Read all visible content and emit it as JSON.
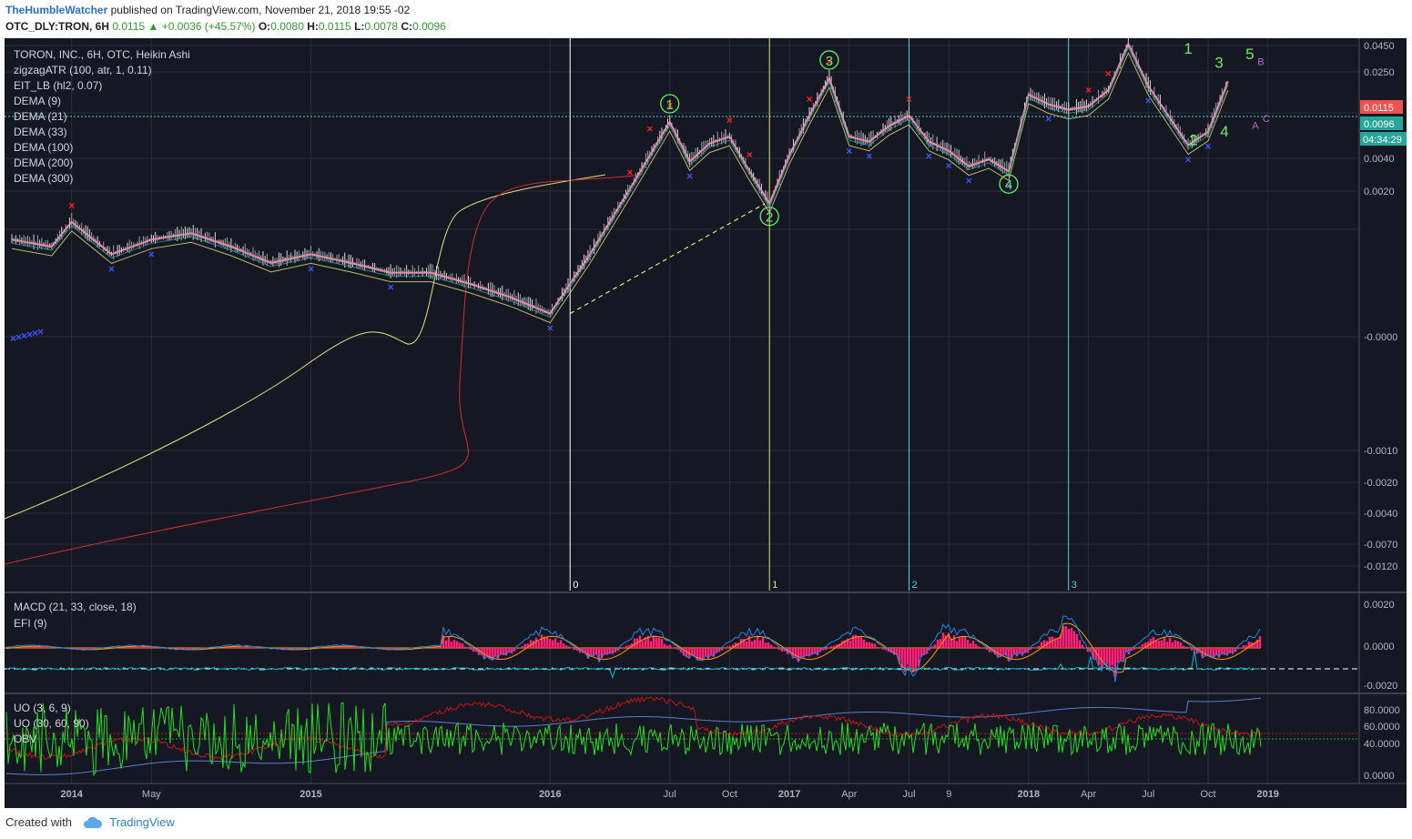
{
  "header": {
    "author": "TheHumbleWatcher",
    "published": "published on TradingView.com, November 21, 2018 19:55 -02",
    "symbol": "OTC_DLY:TRON, 6H",
    "last": "0.0115",
    "change": "+0.0036 (+45.57%)",
    "ohlc": {
      "o_label": "O:",
      "o": "0.0080",
      "h_label": "H:",
      "h": "0.0115",
      "l_label": "L:",
      "l": "0.0078",
      "c_label": "C:",
      "c": "0.0096"
    }
  },
  "legend": {
    "main": [
      "TORON, INC., 6H, OTC, Heikin Ashi",
      "zigzagATR (100, atr, 1, 0.11)",
      "EIT_LB (hl2, 0.07)",
      "DEMA (9)",
      "DEMA (21)",
      "DEMA (33)",
      "DEMA (100)",
      "DEMA (200)",
      "DEMA (300)"
    ],
    "macd": [
      "MACD (21, 33, close, 18)",
      "EFI (9)"
    ],
    "uo": [
      "UO (3, 6, 9)",
      "UO (30, 60, 90)",
      "OBV"
    ]
  },
  "colors": {
    "background": "#151823",
    "grid": "#2a2e39",
    "up": "#26a69a",
    "down": "#ef5350",
    "dema_fast": "#f48fb1",
    "dema_slow_yellow": "#e6e07a",
    "dema_slow_red": "#d32f2f",
    "macd": "#1e88e5",
    "signal": "#ff9800",
    "efi": "#00bcd4",
    "histogram": "#ff1e78",
    "uo_short": "#22dd22",
    "uo_long": "#cc1111",
    "obv": "#5b7fd4",
    "wave_label": "#66ee66",
    "abc_label": "#b36bd6",
    "marker_red": "#ff2020",
    "marker_blue": "#3a55ff",
    "price_tag_red": "#ef5350",
    "price_tag_teal": "#26a69a"
  },
  "chart_data": {
    "type": "line",
    "title": "TORON, INC., 6H, OTC, Heikin Ashi",
    "scale": "log",
    "x_ticks": [
      "2014",
      "May",
      "2015",
      "2016",
      "Jul",
      "Oct",
      "2017",
      "Apr",
      "Jul",
      "9",
      "2018",
      "Apr",
      "Jul",
      "Oct",
      "2019"
    ],
    "y_ticks_price": [
      "0.0450",
      "0.0250",
      "0.0115",
      "0.0096",
      "0.0040",
      "0.0020",
      "-0.0000",
      "-0.0010",
      "-0.0020",
      "-0.0040",
      "-0.0070",
      "-0.0120"
    ],
    "current_price": "0.0115",
    "close_price": "0.0096",
    "countdown": "04:34:29",
    "price_series": {
      "name": "Heikin Ashi close",
      "x": [
        "2013-10",
        "2013-12",
        "2014-01",
        "2014-03",
        "2014-05",
        "2014-07",
        "2014-09",
        "2014-11",
        "2015-01",
        "2015-03",
        "2015-05",
        "2015-07",
        "2015-09",
        "2015-11",
        "2016-01",
        "2016-03",
        "2016-05",
        "2016-07",
        "2016-08",
        "2016-09",
        "2016-10",
        "2016-11",
        "2016-12",
        "2017-01",
        "2017-02",
        "2017-03",
        "2017-04",
        "2017-05",
        "2017-06",
        "2017-07",
        "2017-08",
        "2017-09",
        "2017-10",
        "2017-11",
        "2017-12",
        "2018-01",
        "2018-02",
        "2018-03",
        "2018-04",
        "2018-05",
        "2018-06",
        "2018-07",
        "2018-08",
        "2018-09",
        "2018-10",
        "2018-11"
      ],
      "y": [
        0.0011,
        0.001,
        0.0014,
        0.0009,
        0.0011,
        0.0012,
        0.001,
        0.0008,
        0.0009,
        0.0008,
        0.0007,
        0.0007,
        0.0006,
        0.0005,
        0.0004,
        0.0009,
        0.0022,
        0.0055,
        0.0032,
        0.0041,
        0.0045,
        0.0028,
        0.0018,
        0.0035,
        0.006,
        0.01,
        0.0045,
        0.0042,
        0.0052,
        0.006,
        0.0042,
        0.0037,
        0.003,
        0.0033,
        0.0028,
        0.008,
        0.007,
        0.0065,
        0.0068,
        0.0085,
        0.016,
        0.009,
        0.006,
        0.004,
        0.0048,
        0.0096
      ]
    },
    "vertical_markers": [
      {
        "label": "0",
        "x": "2016-02",
        "color": "#ffffff"
      },
      {
        "label": "1",
        "x": "2016-12",
        "color": "#e6e07a"
      },
      {
        "label": "2",
        "x": "2017-07",
        "color": "#4dd0e1"
      },
      {
        "label": "3",
        "x": "2018-03",
        "color": "#4dd0e1"
      }
    ],
    "wave_labels": [
      {
        "label": "1",
        "x": "2016-07",
        "y": 0.0055,
        "circled": true
      },
      {
        "label": "2",
        "x": "2016-12",
        "y": 0.0018,
        "circled": true
      },
      {
        "label": "3",
        "x": "2017-03",
        "y": 0.01,
        "circled": true
      },
      {
        "label": "4",
        "x": "2017-12",
        "y": 0.0028,
        "circled": true
      },
      {
        "label": "5",
        "x": "2018-06",
        "y": 0.016,
        "circled": true
      },
      {
        "label": "1",
        "x": "2018-09",
        "y": 0.014,
        "circled": false
      },
      {
        "label": "2",
        "x": "2018-09",
        "y": 0.004,
        "circled": false
      },
      {
        "label": "3",
        "x": "2018-10",
        "y": 0.0115,
        "circled": false
      },
      {
        "label": "4",
        "x": "2018-10",
        "y": 0.0045,
        "circled": false
      },
      {
        "label": "5",
        "x": "2018-11",
        "y": 0.013,
        "circled": false
      },
      {
        "label": "A",
        "x": "2018-11",
        "y": 0.005,
        "circled": false
      },
      {
        "label": "B",
        "x": "2018-11",
        "y": 0.012,
        "circled": false
      },
      {
        "label": "C",
        "x": "2018-11",
        "y": 0.0055,
        "circled": false
      }
    ],
    "macd_panel": {
      "y_ticks": [
        "0.0020",
        "0.0000",
        "-0.0020"
      ],
      "legend": [
        "MACD (21, 33, close, 18)",
        "EFI (9)"
      ]
    },
    "uo_panel": {
      "y_ticks": [
        "80.0000",
        "60.0000",
        "40.0000",
        "0.0000"
      ],
      "legend": [
        "UO (3, 6, 9)",
        "UO (30, 60, 90)",
        "OBV"
      ]
    }
  },
  "footer": {
    "created_with": "Created with",
    "brand": "TradingView"
  }
}
